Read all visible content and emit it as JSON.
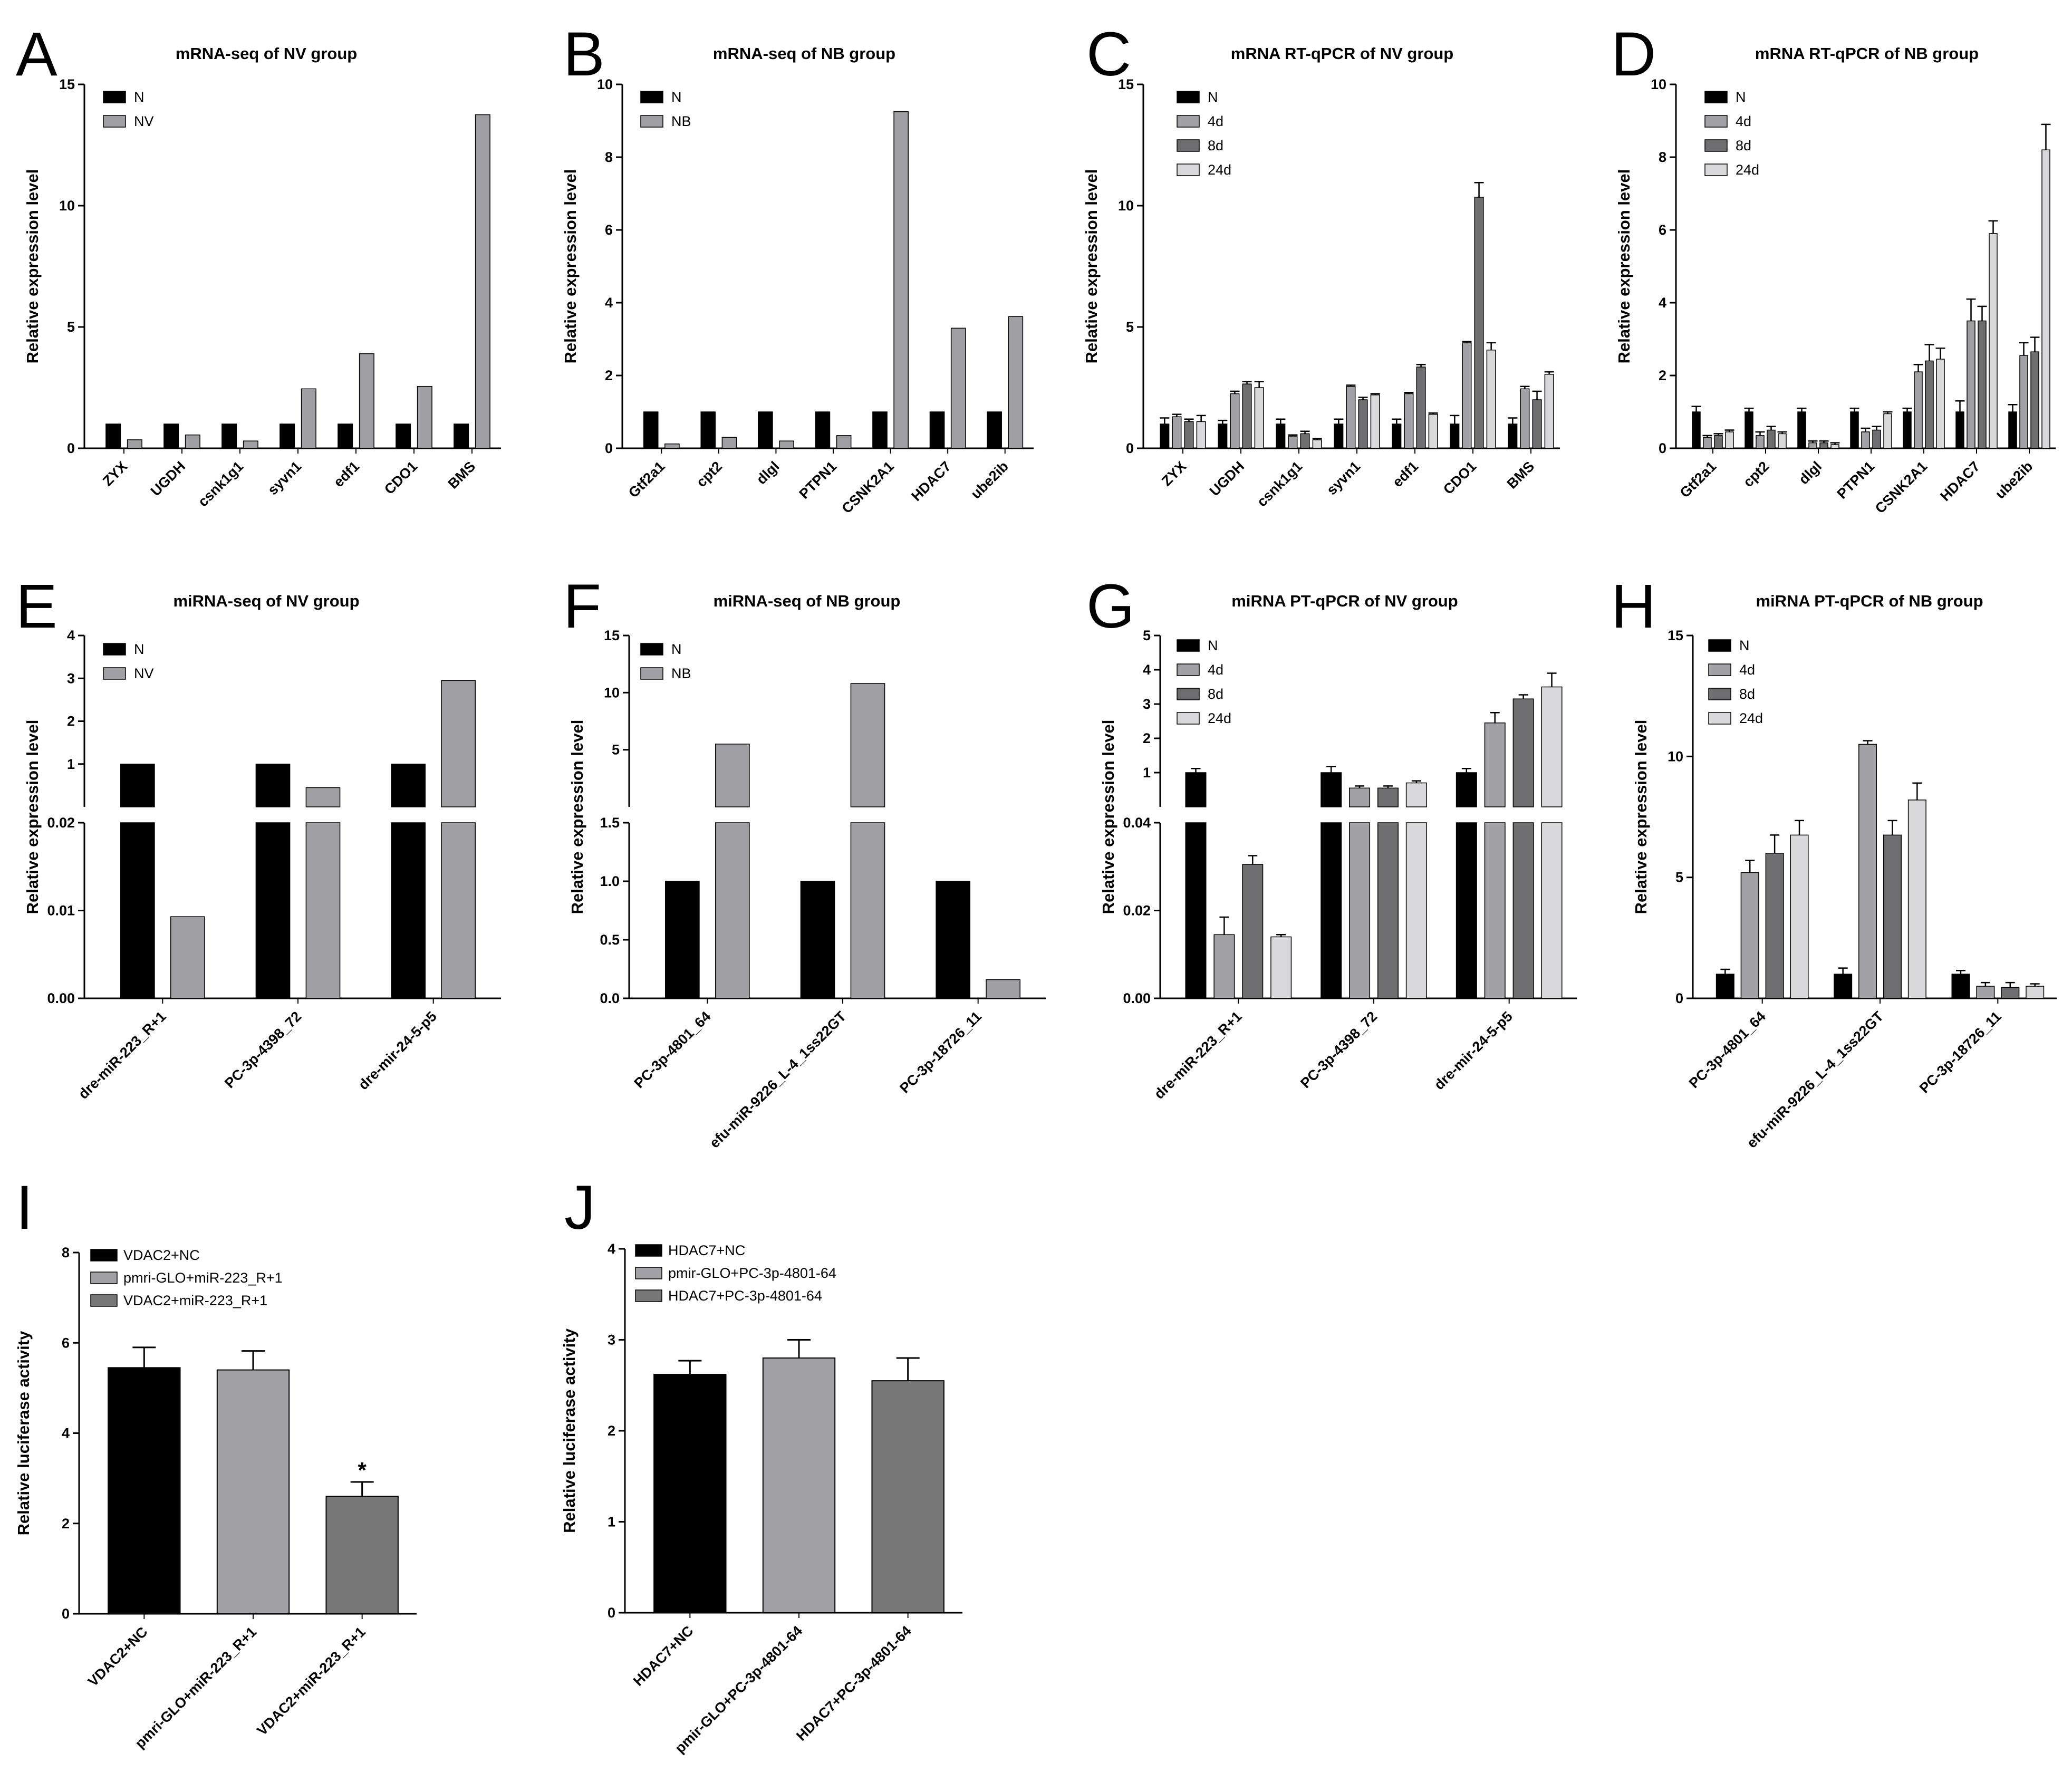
{
  "colors": {
    "N": "#000000",
    "NV": "#9e9ea3",
    "4d": "#a2a2a6",
    "8d": "#6e6e70",
    "24d": "#d9d9dc",
    "lucA": "#000000",
    "lucB": "#a2a2a6",
    "lucC": "#777777"
  },
  "chart_data": [
    {
      "id": "A",
      "panel_label": "A",
      "type": "bar",
      "title": "mRNA-seq of NV group",
      "ylabel": "Relative expression level",
      "ylim": [
        0,
        15
      ],
      "yticks": [
        "0",
        "5",
        "10",
        "15"
      ],
      "tick_values": [
        0,
        5,
        10,
        15
      ],
      "categories": [
        "ZYX",
        "UGDH",
        "csnk1g1",
        "syvn1",
        "edf1",
        "CDO1",
        "BMS"
      ],
      "series": [
        {
          "name": "N",
          "color_key": "N",
          "values": [
            1,
            1,
            1,
            1,
            1,
            1,
            1
          ]
        },
        {
          "name": "NV",
          "color_key": "NV",
          "values": [
            0.35,
            0.55,
            0.3,
            2.45,
            3.9,
            2.55,
            13.75
          ]
        }
      ]
    },
    {
      "id": "B",
      "panel_label": "B",
      "type": "bar",
      "title": "mRNA-seq of NB group",
      "ylabel": "Relative expression level",
      "ylim": [
        0,
        10
      ],
      "yticks": [
        "0",
        "2",
        "4",
        "6",
        "8",
        "10"
      ],
      "tick_values": [
        0,
        2,
        4,
        6,
        8,
        10
      ],
      "categories": [
        "Gtf2a1",
        "cpt2",
        "dlgl",
        "PTPN1",
        "CSNK2A1",
        "HDAC7",
        "ube2ib"
      ],
      "series": [
        {
          "name": "N",
          "color_key": "N",
          "values": [
            1,
            1,
            1,
            1,
            1,
            1,
            1
          ]
        },
        {
          "name": "NB",
          "color_key": "NV",
          "values": [
            0.12,
            0.3,
            0.2,
            0.35,
            9.25,
            3.3,
            3.62
          ]
        }
      ]
    },
    {
      "id": "C",
      "panel_label": "C",
      "type": "bar",
      "title": "mRNA RT-qPCR of NV group",
      "ylabel": "Relative expression level",
      "ylim": [
        0,
        15
      ],
      "yticks": [
        "0",
        "5",
        "10",
        "15"
      ],
      "tick_values": [
        0,
        5,
        10,
        15
      ],
      "categories": [
        "ZYX",
        "UGDH",
        "csnk1g1",
        "syvn1",
        "edf1",
        "CDO1",
        "BMS"
      ],
      "series": [
        {
          "name": "N",
          "color_key": "N",
          "values": [
            1,
            1,
            1,
            1,
            1,
            1,
            1
          ],
          "errors": [
            0.25,
            0.15,
            0.2,
            0.2,
            0.2,
            0.35,
            0.25
          ]
        },
        {
          "name": "4d",
          "color_key": "4d",
          "values": [
            1.3,
            2.25,
            0.5,
            2.55,
            2.25,
            4.35,
            2.45
          ],
          "errors": [
            0.1,
            0.1,
            0.05,
            0.05,
            0.05,
            0.05,
            0.1
          ]
        },
        {
          "name": "8d",
          "color_key": "8d",
          "values": [
            1.1,
            2.65,
            0.6,
            2.0,
            3.35,
            10.35,
            2.0
          ],
          "errors": [
            0.1,
            0.1,
            0.1,
            0.1,
            0.1,
            0.6,
            0.35
          ]
        },
        {
          "name": "24d",
          "color_key": "24d",
          "values": [
            1.1,
            2.5,
            0.35,
            2.2,
            1.4,
            4.05,
            3.05
          ],
          "errors": [
            0.25,
            0.25,
            0.05,
            0.05,
            0.05,
            0.3,
            0.1
          ]
        }
      ]
    },
    {
      "id": "D",
      "panel_label": "D",
      "type": "bar",
      "title": "mRNA RT-qPCR of NB group",
      "ylabel": "Relative expression level",
      "ylim": [
        0,
        10
      ],
      "yticks": [
        "0",
        "2",
        "4",
        "6",
        "8",
        "10"
      ],
      "tick_values": [
        0,
        2,
        4,
        6,
        8,
        10
      ],
      "categories": [
        "Gtf2a1",
        "cpt2",
        "dlgl",
        "PTPN1",
        "CSNK2A1",
        "HDAC7",
        "ube2ib"
      ],
      "series": [
        {
          "name": "N",
          "color_key": "N",
          "values": [
            1,
            1,
            1,
            1,
            1,
            1,
            1
          ],
          "errors": [
            0.15,
            0.1,
            0.1,
            0.1,
            0.1,
            0.3,
            0.2
          ]
        },
        {
          "name": "4d",
          "color_key": "4d",
          "values": [
            0.3,
            0.35,
            0.15,
            0.45,
            2.1,
            3.5,
            2.55
          ],
          "errors": [
            0.05,
            0.1,
            0.05,
            0.1,
            0.2,
            0.6,
            0.35
          ]
        },
        {
          "name": "8d",
          "color_key": "8d",
          "values": [
            0.35,
            0.5,
            0.15,
            0.5,
            2.4,
            3.5,
            2.65
          ],
          "errors": [
            0.05,
            0.1,
            0.05,
            0.1,
            0.45,
            0.4,
            0.4
          ]
        },
        {
          "name": "24d",
          "color_key": "24d",
          "values": [
            0.45,
            0.4,
            0.1,
            0.95,
            2.45,
            5.9,
            8.2
          ],
          "errors": [
            0.05,
            0.05,
            0.05,
            0.05,
            0.3,
            0.35,
            0.7
          ]
        }
      ]
    },
    {
      "id": "E",
      "panel_label": "E",
      "type": "bar",
      "title": "miRNA-seq of NV group",
      "ylabel": "Relative expression level",
      "broken_axis": true,
      "upper": {
        "ylim": [
          0,
          4
        ],
        "yticks": [
          "1",
          "2",
          "3",
          "4"
        ],
        "tick_values": [
          1,
          2,
          3,
          4
        ]
      },
      "lower": {
        "ylim": [
          0,
          0.02
        ],
        "yticks": [
          "0.00",
          "0.01",
          "0.02"
        ],
        "tick_values": [
          0,
          0.01,
          0.02
        ]
      },
      "categories": [
        "dre-miR-223_R+1",
        "PC-3p-4398_72",
        "dre-mir-24-5-p5"
      ],
      "series": [
        {
          "name": "N",
          "color_key": "N",
          "values": [
            1,
            1,
            1
          ]
        },
        {
          "name": "NV",
          "color_key": "NV",
          "values": [
            0.0093,
            0.45,
            2.95
          ]
        }
      ]
    },
    {
      "id": "F",
      "panel_label": "F",
      "type": "bar",
      "title": "miRNA-seq of NB group",
      "ylabel": "Relative expression level",
      "broken_axis": true,
      "upper": {
        "ylim": [
          0,
          15
        ],
        "yticks": [
          "5",
          "10",
          "15"
        ],
        "tick_values": [
          5,
          10,
          15
        ]
      },
      "lower": {
        "ylim": [
          0,
          1.5
        ],
        "yticks": [
          "0.0",
          "0.5",
          "1.0",
          "1.5"
        ],
        "tick_values": [
          0,
          0.5,
          1.0,
          1.5
        ]
      },
      "categories": [
        "PC-3p-4801_64",
        "efu-miR-9226_L-4_1ss22GT",
        "PC-3p-18726_11"
      ],
      "series": [
        {
          "name": "N",
          "color_key": "N",
          "values": [
            1,
            1,
            1
          ]
        },
        {
          "name": "NB",
          "color_key": "NV",
          "values": [
            5.5,
            10.8,
            0.16
          ]
        }
      ]
    },
    {
      "id": "G",
      "panel_label": "G",
      "type": "bar",
      "title": "miRNA PT-qPCR of NV group",
      "ylabel": "Relative expression level",
      "broken_axis": true,
      "upper": {
        "ylim": [
          0,
          5
        ],
        "yticks": [
          "1",
          "2",
          "3",
          "4",
          "5"
        ],
        "tick_values": [
          1,
          2,
          3,
          4,
          5
        ]
      },
      "lower": {
        "ylim": [
          0,
          0.04
        ],
        "yticks": [
          "0.00",
          "0.02",
          "0.04"
        ],
        "tick_values": [
          0,
          0.02,
          0.04
        ]
      },
      "categories": [
        "dre-miR-223_R+1",
        "PC-3p-4398_72",
        "dre-mir-24-5-p5"
      ],
      "series": [
        {
          "name": "N",
          "color_key": "N",
          "values": [
            1,
            1,
            1
          ],
          "errors": [
            0.12,
            0.18,
            0.12
          ]
        },
        {
          "name": "4d",
          "color_key": "4d",
          "values": [
            0.0145,
            0.55,
            2.45
          ],
          "errors": [
            0.004,
            0.06,
            0.3
          ]
        },
        {
          "name": "8d",
          "color_key": "8d",
          "values": [
            0.0305,
            0.55,
            3.15
          ],
          "errors": [
            0.002,
            0.06,
            0.12
          ]
        },
        {
          "name": "24d",
          "color_key": "24d",
          "values": [
            0.014,
            0.7,
            3.5
          ],
          "errors": [
            0.0005,
            0.06,
            0.4
          ]
        }
      ]
    },
    {
      "id": "H",
      "panel_label": "H",
      "type": "bar",
      "title": "miRNA PT-qPCR of NB group",
      "ylabel": "Relative expression level",
      "ylim": [
        0,
        15
      ],
      "yticks": [
        "0",
        "5",
        "10",
        "15"
      ],
      "tick_values": [
        0,
        5,
        10,
        15
      ],
      "categories": [
        "PC-3p-4801_64",
        "efu-miR-9226_L-4_1ss22GT",
        "PC-3p-18726_11"
      ],
      "series": [
        {
          "name": "N",
          "color_key": "N",
          "values": [
            1,
            1,
            1
          ],
          "errors": [
            0.2,
            0.25,
            0.15
          ]
        },
        {
          "name": "4d",
          "color_key": "4d",
          "values": [
            5.2,
            10.5,
            0.5
          ],
          "errors": [
            0.5,
            0.15,
            0.15
          ]
        },
        {
          "name": "8d",
          "color_key": "8d",
          "values": [
            6.0,
            6.75,
            0.45
          ],
          "errors": [
            0.75,
            0.6,
            0.2
          ]
        },
        {
          "name": "24d",
          "color_key": "24d",
          "values": [
            6.75,
            8.2,
            0.5
          ],
          "errors": [
            0.6,
            0.7,
            0.1
          ]
        }
      ]
    },
    {
      "id": "I",
      "panel_label": "I",
      "type": "bar",
      "title": "",
      "ylabel": "Relative luciferase activity",
      "ylim": [
        0,
        8
      ],
      "yticks": [
        "0",
        "2",
        "4",
        "6",
        "8"
      ],
      "tick_values": [
        0,
        2,
        4,
        6,
        8
      ],
      "categories": [
        "VDAC2+NC",
        "pmri-GLO+miR-223_R+1",
        "VDAC2+miR-223_R+1"
      ],
      "single": true,
      "values": [
        5.45,
        5.4,
        2.6
      ],
      "errors": [
        0.45,
        0.42,
        0.32
      ],
      "bar_color_keys": [
        "lucA",
        "lucB",
        "lucC"
      ],
      "legend": [
        "VDAC2+NC",
        "pmri-GLO+miR-223_R+1",
        "VDAC2+miR-223_R+1"
      ],
      "annotations": [
        {
          "category_index": 2,
          "text": "*"
        }
      ]
    },
    {
      "id": "J",
      "panel_label": "J",
      "type": "bar",
      "title": "",
      "ylabel": "Relative luciferase activity",
      "ylim": [
        0,
        4
      ],
      "yticks": [
        "0",
        "1",
        "2",
        "3",
        "4"
      ],
      "tick_values": [
        0,
        1,
        2,
        3,
        4
      ],
      "categories": [
        "HDAC7+NC",
        "pmir-GLO+PC-3p-4801-64",
        "HDAC7+PC-3p-4801-64"
      ],
      "single": true,
      "values": [
        2.62,
        2.8,
        2.55
      ],
      "errors": [
        0.15,
        0.2,
        0.25
      ],
      "bar_color_keys": [
        "lucA",
        "lucB",
        "lucC"
      ],
      "legend": [
        "HDAC7+NC",
        "pmir-GLO+PC-3p-4801-64",
        "HDAC7+PC-3p-4801-64"
      ]
    }
  ]
}
